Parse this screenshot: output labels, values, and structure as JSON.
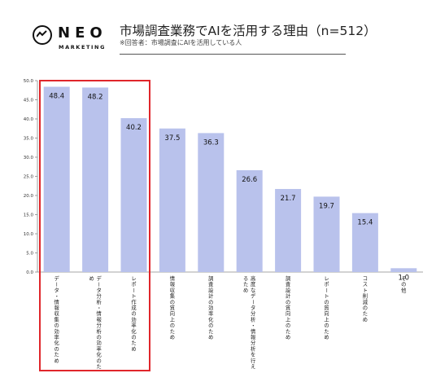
{
  "brand": {
    "name": "NEO",
    "tagline": "MARKETING"
  },
  "header": {
    "title": "市場調査業務でAIを活用する理由（n=512）",
    "subtitle": "※回答者：市場調査にAIを活用している人"
  },
  "colors": {
    "bar": "#b9c2ec",
    "highlight": "#e0262b",
    "axis": "#888888",
    "text": "#1a1a1a"
  },
  "chart_data": {
    "type": "bar",
    "categories": [
      "データ・情報収集の効率化のため",
      "データ分析・情報分析の効率化のため",
      "レポート作成の効率化のため",
      "情報収集の質向上のため",
      "調査設計の効率化のため",
      "高度なデータ分析・情報分析を行えるため",
      "調査設計の質向上のため",
      "レポートの質向上のため",
      "コスト削減のため",
      "その他"
    ],
    "values": [
      48.4,
      48.2,
      40.2,
      37.5,
      36.3,
      26.6,
      21.7,
      19.7,
      15.4,
      1.0
    ],
    "value_labels": [
      "48.4",
      "48.2",
      "40.2",
      "37.5",
      "36.3",
      "26.6",
      "21.7",
      "19.7",
      "15.4",
      "1.0"
    ],
    "ylim": [
      0,
      50
    ],
    "yticks": [
      "0.0",
      "5.0",
      "10.0",
      "15.0",
      "20.0",
      "25.0",
      "30.0",
      "35.0",
      "40.0",
      "45.0",
      "50.0"
    ],
    "highlighted_categories": [
      0,
      1,
      2
    ],
    "grid": false,
    "legend": "none"
  }
}
